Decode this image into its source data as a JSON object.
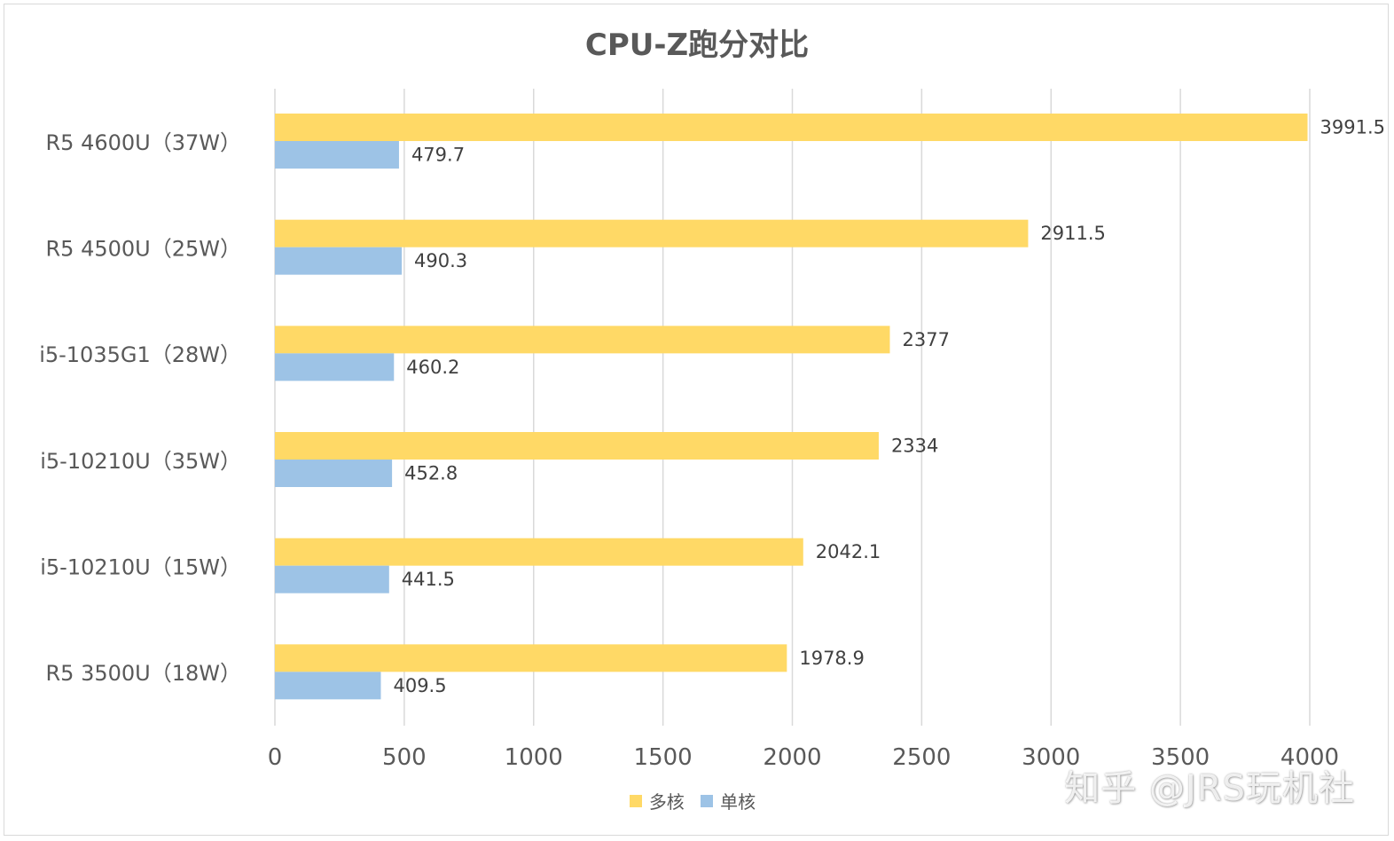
{
  "title": "CPU-Z跑分对比",
  "colors": {
    "multi": "#FFD966",
    "single": "#9DC3E6",
    "grid": "#d9d9d9",
    "text": "#595959",
    "label": "#404040"
  },
  "legend": {
    "multi_label": "多核",
    "single_label": "单核"
  },
  "watermark": "知乎 @JRS玩机社",
  "chart_data": {
    "type": "bar",
    "orientation": "horizontal",
    "title": "CPU-Z跑分对比",
    "categories": [
      "R5 4600U（37W）",
      "R5 4500U（25W）",
      "i5-1035G1（28W）",
      "i5-10210U（35W）",
      "i5-10210U（15W）",
      "R5 3500U（18W）"
    ],
    "series": [
      {
        "name": "多核",
        "values": [
          3991.5,
          2911.5,
          2377,
          2334,
          2042.1,
          1978.9
        ]
      },
      {
        "name": "单核",
        "values": [
          479.7,
          490.3,
          460.2,
          452.8,
          441.5,
          409.5
        ]
      }
    ],
    "value_labels": [
      [
        "3991.5",
        "2911.5",
        "2377",
        "2334",
        "2042.1",
        "1978.9"
      ],
      [
        "479.7",
        "490.3",
        "460.2",
        "452.8",
        "441.5",
        "409.5"
      ]
    ],
    "xlim": [
      0,
      4000
    ],
    "xticks": [
      "0",
      "500",
      "1000",
      "1500",
      "2000",
      "2500",
      "3000",
      "3500",
      "4000"
    ],
    "grid": "vertical",
    "legend_position": "bottom"
  }
}
